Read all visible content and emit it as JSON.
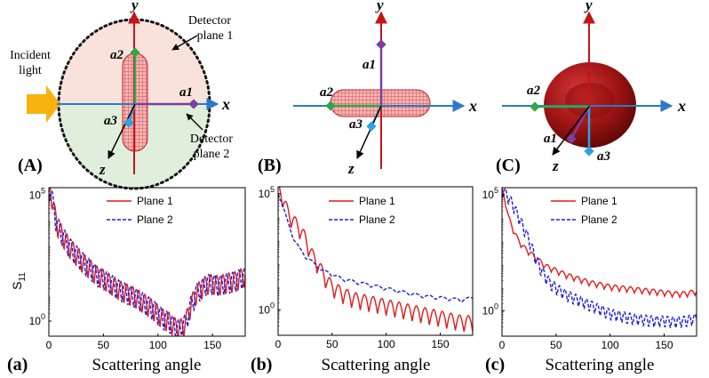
{
  "figure": {
    "top_panels": [
      {
        "id": "A",
        "label": "(A)",
        "incident_light": [
          "Incident",
          "light"
        ],
        "detector_plane_1": [
          "Detector",
          "plane 1"
        ],
        "detector_plane_2": [
          "Detector",
          "plane 2"
        ],
        "axes": {
          "x": "x",
          "y": "y",
          "z": "z"
        },
        "points": {
          "a1": "a1",
          "a2": "a2",
          "a3": "a3"
        }
      },
      {
        "id": "B",
        "label": "(B)",
        "axes": {
          "x": "x",
          "y": "y",
          "z": "z"
        },
        "points": {
          "a1": "a1",
          "a2": "a2",
          "a3": "a3"
        }
      },
      {
        "id": "C",
        "label": "(C)",
        "axes": {
          "x": "x",
          "y": "y",
          "z": "z"
        },
        "points": {
          "a1": "a1",
          "a2": "a2",
          "a3": "a3"
        }
      }
    ],
    "colors": {
      "axis_blue": "#2d79c8",
      "axis_red": "#c4141a",
      "axis_green": "#2ea84a",
      "axis_purple": "#7a3fa0",
      "plane1_fill": "#f6d6cc",
      "plane2_fill": "#d5e9cf",
      "arrow_orange": "#f7b20d",
      "plane1_line": "#e31a1c",
      "plane2_line": "#1f1fd6",
      "cell_red": "#9e1010"
    }
  },
  "chart_data": [
    {
      "id": "a",
      "type": "line",
      "panel_label": "(a)",
      "xlabel": "Scattering angle",
      "ylabel": "S11",
      "ylabel_main": "S",
      "ylabel_sub": "11",
      "xlim": [
        0,
        180
      ],
      "ylim_log10": [
        -0.6,
        5.3
      ],
      "xticks": [
        0,
        50,
        100,
        150
      ],
      "xtick_labels": [
        "0",
        "50",
        "100",
        "150"
      ],
      "yticks_log10": [
        0,
        5
      ],
      "ytick_base": "10",
      "ytick_exps": [
        "0",
        "5"
      ],
      "legend": [
        "Plane 1",
        "Plane 2"
      ],
      "series": [
        {
          "name": "Plane 1",
          "style": "solid",
          "color": "#e31a1c",
          "x": [
            0,
            2,
            4,
            6,
            8,
            10,
            14,
            18,
            22,
            26,
            30,
            35,
            40,
            45,
            50,
            55,
            60,
            65,
            70,
            75,
            80,
            85,
            90,
            95,
            100,
            105,
            110,
            115,
            120,
            125,
            130,
            135,
            140,
            145,
            150,
            155,
            160,
            165,
            170,
            175,
            180
          ],
          "log10_env": [
            5.3,
            5.0,
            4.5,
            4.0,
            3.7,
            3.5,
            3.2,
            2.9,
            2.7,
            2.5,
            2.3,
            2.1,
            1.9,
            1.7,
            1.6,
            1.45,
            1.3,
            1.15,
            1.05,
            0.95,
            0.85,
            0.7,
            0.55,
            0.4,
            0.2,
            0.0,
            -0.1,
            -0.3,
            -0.4,
            -0.2,
            0.5,
            1.0,
            1.2,
            1.4,
            1.4,
            1.35,
            1.4,
            1.45,
            1.5,
            1.6,
            1.7
          ],
          "osc_amplitude": 0.9,
          "osc_period": 5.5
        },
        {
          "name": "Plane 2",
          "style": "dashed",
          "color": "#1f1fd6",
          "x": [
            0,
            2,
            4,
            6,
            8,
            10,
            14,
            18,
            22,
            26,
            30,
            35,
            40,
            45,
            50,
            55,
            60,
            65,
            70,
            75,
            80,
            85,
            90,
            95,
            100,
            105,
            110,
            115,
            120,
            125,
            130,
            135,
            140,
            145,
            150,
            155,
            160,
            165,
            170,
            175,
            180
          ],
          "log10_env": [
            5.3,
            5.0,
            4.5,
            4.0,
            3.7,
            3.5,
            3.2,
            2.9,
            2.7,
            2.5,
            2.3,
            2.1,
            1.9,
            1.7,
            1.6,
            1.45,
            1.3,
            1.15,
            1.05,
            0.95,
            0.85,
            0.7,
            0.55,
            0.4,
            0.2,
            0.0,
            -0.1,
            -0.3,
            -0.4,
            -0.2,
            0.5,
            1.0,
            1.2,
            1.4,
            1.4,
            1.35,
            1.4,
            1.45,
            1.5,
            1.6,
            1.7
          ],
          "osc_amplitude": 0.9,
          "osc_period": 5.5
        }
      ]
    },
    {
      "id": "b",
      "type": "line",
      "panel_label": "(b)",
      "xlabel": "Scattering angle",
      "xlim": [
        0,
        180
      ],
      "ylim_log10": [
        -1.1,
        5.3
      ],
      "xticks": [
        0,
        50,
        100,
        150
      ],
      "xtick_labels": [
        "0",
        "50",
        "100",
        "150"
      ],
      "yticks_log10": [
        0,
        5
      ],
      "ytick_base": "10",
      "ytick_exps": [
        "0",
        "5"
      ],
      "legend": [
        "Plane 1",
        "Plane 2"
      ],
      "series": [
        {
          "name": "Plane 1",
          "style": "solid",
          "color": "#e31a1c",
          "x": [
            0,
            3,
            6,
            10,
            15,
            20,
            25,
            30,
            35,
            40,
            45,
            50,
            60,
            70,
            80,
            90,
            100,
            110,
            120,
            130,
            140,
            150,
            160,
            170,
            180
          ],
          "log10_env": [
            5.1,
            4.9,
            4.5,
            4.0,
            3.7,
            3.4,
            3.0,
            2.4,
            2.0,
            1.6,
            1.2,
            0.9,
            0.6,
            0.4,
            0.3,
            0.2,
            0.1,
            0.0,
            -0.1,
            -0.2,
            -0.3,
            -0.4,
            -0.5,
            -0.6,
            -0.6
          ],
          "osc_amplitude": 0.7,
          "osc_period": 8
        },
        {
          "name": "Plane 2",
          "style": "dashed",
          "color": "#1f1fd6",
          "x": [
            0,
            3,
            6,
            10,
            15,
            20,
            25,
            30,
            35,
            40,
            45,
            50,
            60,
            70,
            80,
            90,
            100,
            110,
            120,
            130,
            140,
            150,
            160,
            170,
            180
          ],
          "log10_env": [
            5.0,
            4.7,
            4.2,
            3.6,
            3.0,
            2.6,
            2.3,
            2.1,
            1.9,
            1.7,
            1.6,
            1.5,
            1.3,
            1.2,
            1.1,
            1.0,
            0.9,
            0.8,
            0.7,
            0.6,
            0.55,
            0.5,
            0.45,
            0.4,
            0.5
          ],
          "osc_amplitude": 0.15,
          "osc_period": 12
        }
      ]
    },
    {
      "id": "c",
      "type": "line",
      "panel_label": "(c)",
      "xlabel": "Scattering angle",
      "xlim": [
        0,
        180
      ],
      "ylim_log10": [
        -1.1,
        5.3
      ],
      "xticks": [
        0,
        50,
        100,
        150
      ],
      "xtick_labels": [
        "0",
        "50",
        "100",
        "150"
      ],
      "yticks_log10": [
        0,
        5
      ],
      "ytick_base": "10",
      "ytick_exps": [
        "0",
        "5"
      ],
      "legend": [
        "Plane 1",
        "Plane 2"
      ],
      "series": [
        {
          "name": "Plane 1",
          "style": "solid",
          "color": "#e31a1c",
          "x": [
            0,
            3,
            6,
            10,
            15,
            20,
            25,
            30,
            35,
            40,
            45,
            50,
            60,
            70,
            80,
            90,
            100,
            110,
            120,
            130,
            140,
            150,
            160,
            170,
            180
          ],
          "log10_env": [
            5.2,
            4.7,
            4.0,
            3.5,
            3.0,
            2.7,
            2.5,
            2.3,
            2.1,
            1.9,
            1.8,
            1.7,
            1.5,
            1.35,
            1.2,
            1.1,
            1.0,
            0.95,
            0.9,
            0.85,
            0.8,
            0.75,
            0.7,
            0.7,
            0.8
          ],
          "osc_amplitude": 0.25,
          "osc_period": 7
        },
        {
          "name": "Plane 2",
          "style": "dashed",
          "color": "#1f1fd6",
          "x": [
            0,
            3,
            6,
            10,
            15,
            20,
            25,
            30,
            35,
            40,
            45,
            50,
            60,
            70,
            80,
            90,
            100,
            110,
            120,
            130,
            140,
            150,
            160,
            170,
            180
          ],
          "log10_env": [
            5.1,
            5.0,
            4.8,
            4.5,
            4.0,
            3.5,
            3.0,
            2.3,
            1.8,
            1.4,
            1.1,
            0.9,
            0.6,
            0.4,
            0.2,
            0.0,
            -0.2,
            -0.3,
            -0.4,
            -0.45,
            -0.5,
            -0.5,
            -0.55,
            -0.5,
            -0.4
          ],
          "osc_amplitude": 0.55,
          "osc_period": 5
        }
      ]
    }
  ]
}
